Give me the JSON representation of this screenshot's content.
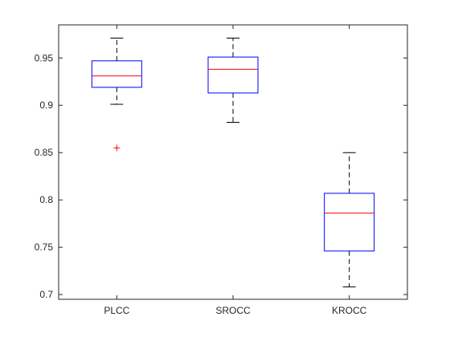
{
  "chart_data": {
    "type": "box",
    "categories": [
      "PLCC",
      "SROCC",
      "KROCC"
    ],
    "boxes": [
      {
        "label": "PLCC",
        "whisker_low": 0.901,
        "q1": 0.919,
        "median": 0.931,
        "q3": 0.947,
        "whisker_high": 0.971,
        "outliers": [
          0.855
        ]
      },
      {
        "label": "SROCC",
        "whisker_low": 0.882,
        "q1": 0.913,
        "median": 0.938,
        "q3": 0.951,
        "whisker_high": 0.971,
        "outliers": []
      },
      {
        "label": "KROCC",
        "whisker_low": 0.708,
        "q1": 0.746,
        "median": 0.786,
        "q3": 0.807,
        "whisker_high": 0.85,
        "outliers": []
      }
    ],
    "ylim": [
      0.695,
      0.985
    ],
    "yticks": [
      0.7,
      0.75,
      0.8,
      0.85,
      0.9,
      0.95
    ],
    "ytick_labels": [
      "0.7",
      "0.75",
      "0.8",
      "0.85",
      "0.9",
      "0.95"
    ],
    "title": "",
    "xlabel": "",
    "ylabel": "",
    "grid": false,
    "colors": {
      "box": "#0000ff",
      "median": "#ff0000",
      "whisker": "#000000",
      "outlier": "#ff0000",
      "axis": "#262626"
    }
  }
}
